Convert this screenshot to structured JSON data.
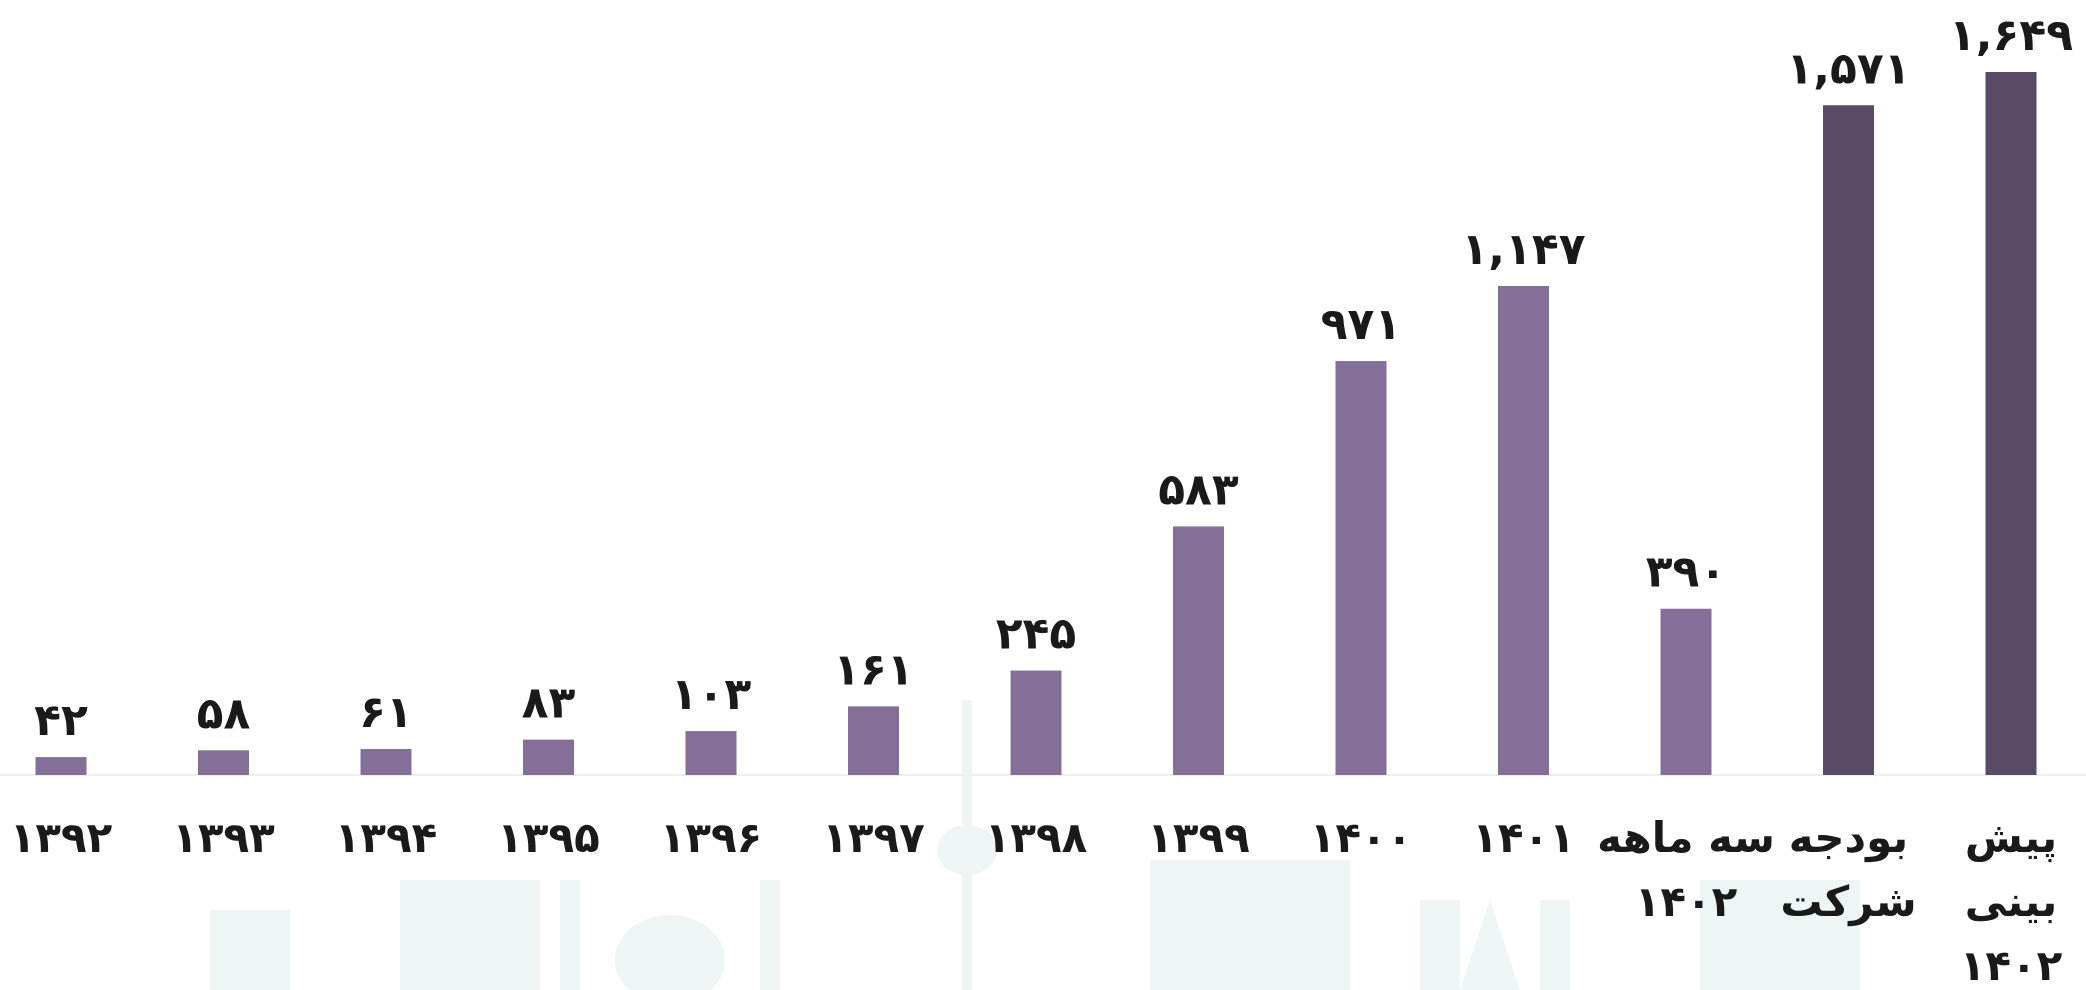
{
  "chart_data": {
    "type": "bar",
    "categories": [
      "۱۳۹۲",
      "۱۳۹۳",
      "۱۳۹۴",
      "۱۳۹۵",
      "۱۳۹۶",
      "۱۳۹۷",
      "۱۳۹۸",
      "۱۳۹۹",
      "۱۴۰۰",
      "۱۴۰۱",
      "سه ماهه\n۱۴۰۲",
      "بودجه\nشرکت",
      "پیش\nبینی\n۱۴۰۲"
    ],
    "values": [
      42,
      58,
      61,
      83,
      103,
      161,
      245,
      583,
      971,
      1147,
      390,
      1571,
      1649
    ],
    "value_labels": [
      "۴۲",
      "۵۸",
      "۶۱",
      "۸۳",
      "۱۰۳",
      "۱۶۱",
      "۲۴۵",
      "۵۸۳",
      "۹۷۱",
      "۱,۱۴۷",
      "۳۹۰",
      "۱,۵۷۱",
      "۱,۶۴۹"
    ],
    "colors": [
      "#846f98",
      "#846f98",
      "#846f98",
      "#846f98",
      "#846f98",
      "#846f98",
      "#846f98",
      "#846f98",
      "#846f98",
      "#846f98",
      "#846f98",
      "#594a68",
      "#594a68"
    ]
  }
}
